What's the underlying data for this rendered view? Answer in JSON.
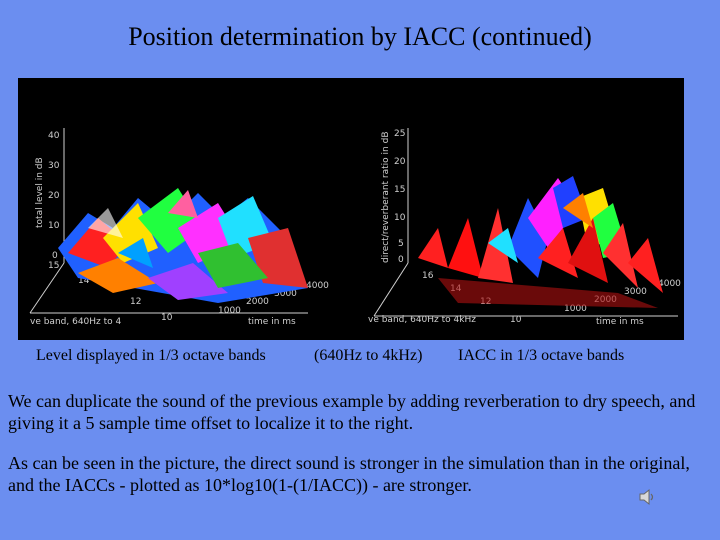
{
  "slide": {
    "title": "Position determination by IACC (continued)",
    "captions": {
      "left": "Level displayed in 1/3 octave bands",
      "middle": "(640Hz to 4kHz)",
      "right": "IACC in 1/3 octave bands"
    },
    "paragraphs": [
      "We can duplicate the sound of the previous example by adding reverberation to dry speech, and giving it a 5 sample time offset to localize it to the right.",
      "As can be seen in the picture, the direct sound is stronger in the simulation than in the original, and the IACCs - plotted as 10*log10(1-(1/IACC)) - are stronger."
    ],
    "speaker_icon": "speaker-icon"
  },
  "plots": {
    "left": {
      "y_label": "total level in dB",
      "y_ticks": [
        "40",
        "30",
        "20",
        "10",
        "0"
      ],
      "band_ticks": [
        "15",
        "14",
        "12",
        "10"
      ],
      "band_label": "ve band, 640Hz to 4",
      "time_ticks": [
        "4000",
        "3000",
        "2000",
        "1000"
      ],
      "time_label": "time in ms"
    },
    "right": {
      "y_label": "direct/reverberant ratio in dB",
      "y_ticks": [
        "25",
        "20",
        "15",
        "10",
        "5",
        "0"
      ],
      "band_ticks": [
        "16",
        "14",
        "12",
        "10"
      ],
      "band_label": "ve band, 640Hz to 4kHz",
      "time_ticks": [
        "4000",
        "3000",
        "2000",
        "1000"
      ],
      "time_label": "time in ms"
    }
  },
  "colors": {
    "background": "#6b8ef0",
    "figure_bg": "#000000"
  }
}
